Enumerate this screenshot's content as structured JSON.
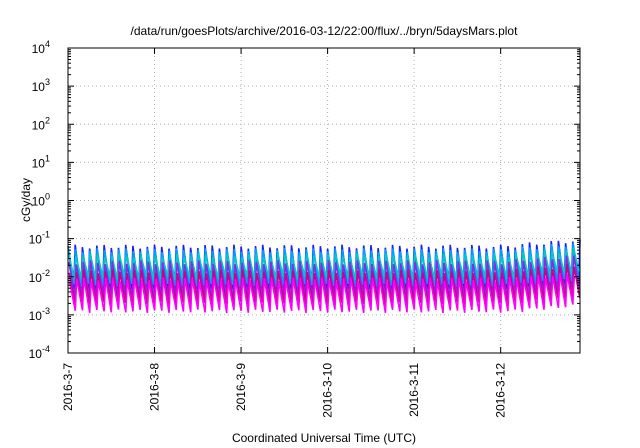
{
  "chart_data": {
    "type": "line",
    "title": "/data/run/goesPlots/archive/2016-03-12/22:00/flux/../bryn/5daysMars.plot",
    "xlabel": "Coordinated Universal Time (UTC)",
    "ylabel": "cGy/day",
    "yscale": "log",
    "ylim": [
      0.0001,
      10000
    ],
    "y_ticks": [
      {
        "base": "10",
        "exp": "-4",
        "value": 0.0001
      },
      {
        "base": "10",
        "exp": "-3",
        "value": 0.001
      },
      {
        "base": "10",
        "exp": "-2",
        "value": 0.01
      },
      {
        "base": "10",
        "exp": "-1",
        "value": 0.1
      },
      {
        "base": "10",
        "exp": "0",
        "value": 1
      },
      {
        "base": "10",
        "exp": "1",
        "value": 10
      },
      {
        "base": "10",
        "exp": "2",
        "value": 100
      },
      {
        "base": "10",
        "exp": "3",
        "value": 1000
      },
      {
        "base": "10",
        "exp": "4",
        "value": 10000
      }
    ],
    "x_ticks": [
      "2016-3-7",
      "2016-3-8",
      "2016-3-9",
      "2016-3-10",
      "2016-3-11",
      "2016-3-12"
    ],
    "xlim": [
      "2016-03-07T00:00",
      "2016-03-12T22:00"
    ],
    "grid": true,
    "legend": "none",
    "series": [
      {
        "color": "#1c1cff",
        "peak": 0.062,
        "trough": 0.0043
      },
      {
        "color": "#00a0ff",
        "peak": 0.05,
        "trough": 0.006
      },
      {
        "color": "#00c8c8",
        "peak": 0.036,
        "trough": 0.009
      },
      {
        "color": "#8a2be2",
        "peak": 0.024,
        "trough": 0.003
      },
      {
        "color": "#c8008c",
        "peak": 0.014,
        "trough": 0.002
      },
      {
        "color": "#ff00ff",
        "peak": 0.0085,
        "trough": 0.00125
      }
    ]
  }
}
